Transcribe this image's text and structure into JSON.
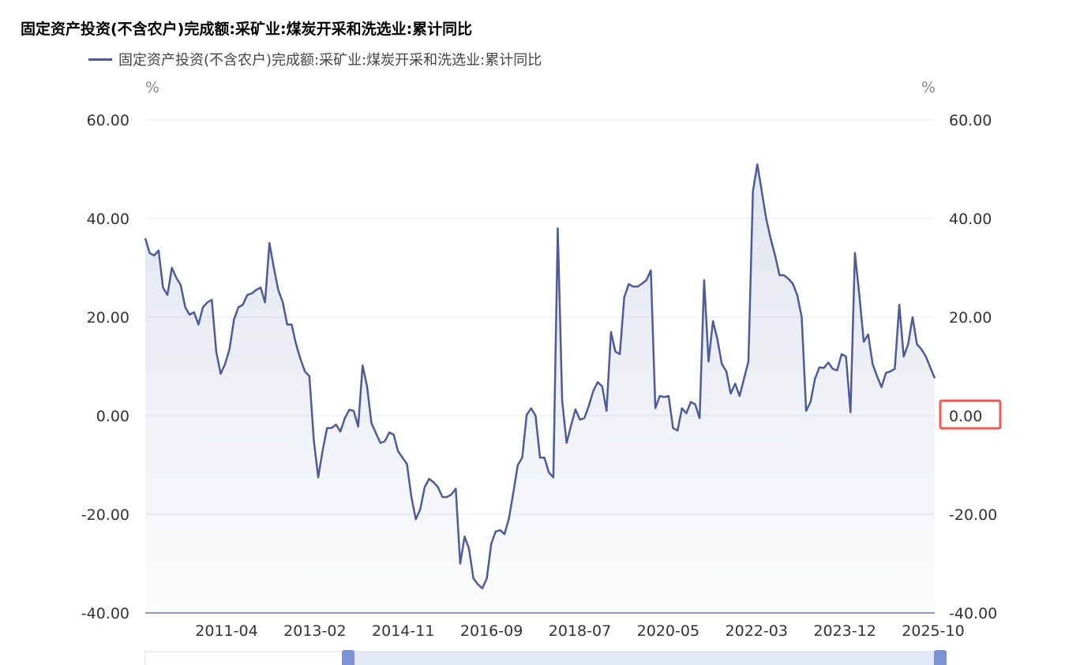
{
  "title": "固定资产投资(不含农户)完成额:采矿业:煤炭开采和洗选业:累计同比",
  "legend": {
    "label": "固定资产投资(不含农户)完成额:采矿业:煤炭开采和洗选业:累计同比"
  },
  "colors": {
    "line": "#4e5b9b",
    "highlight": "#ee5a52",
    "slider": "#dfe6f7"
  },
  "chart_data": {
    "type": "area",
    "title": "固定资产投资(不含农户)完成额:采矿业:煤炭开采和洗选业:累计同比",
    "y_unit_left": "%",
    "y_unit_right": "%",
    "ylim": [
      -40,
      60
    ],
    "y_ticks": [
      "60.00",
      "40.00",
      "20.00",
      "0.00",
      "-20.00",
      "-40.00"
    ],
    "x_tick_labels": [
      "2011-04",
      "2013-02",
      "2014-11",
      "2016-09",
      "2018-07",
      "2020-05",
      "2022-03",
      "2023-12",
      "2025-10"
    ],
    "highlighted_tick": "0.00",
    "grid": true,
    "legend_position": "top-left",
    "series": [
      {
        "name": "固定资产投资(不含农户)完成额:采矿业:煤炭开采和洗选业:累计同比",
        "values": [
          36.0,
          33.0,
          32.5,
          33.5,
          26.0,
          24.5,
          30.0,
          28.0,
          26.5,
          22.0,
          20.5,
          21.0,
          18.5,
          22.0,
          23.0,
          23.5,
          13.0,
          8.5,
          10.5,
          13.5,
          19.5,
          22.0,
          22.5,
          24.5,
          24.8,
          25.5,
          26.0,
          23.0,
          35.0,
          30.0,
          25.5,
          23.0,
          18.5,
          18.5,
          14.5,
          11.5,
          9.0,
          8.0,
          -5.0,
          -12.5,
          -7.0,
          -2.5,
          -2.5,
          -1.8,
          -3.2,
          -0.5,
          1.2,
          1.0,
          -2.2,
          10.2,
          6.0,
          -1.5,
          -3.5,
          -5.5,
          -5.2,
          -3.4,
          -3.8,
          -7.2,
          -8.5,
          -9.8,
          -16.5,
          -21.0,
          -19.0,
          -14.5,
          -12.8,
          -13.5,
          -14.5,
          -16.5,
          -16.5,
          -16.0,
          -14.8,
          -30.0,
          -24.5,
          -27.0,
          -33.0,
          -34.2,
          -35.0,
          -33.0,
          -26.0,
          -23.5,
          -23.2,
          -24.0,
          -20.8,
          -15.5,
          -10.0,
          -8.5,
          0.2,
          1.5,
          0.0,
          -8.5,
          -8.5,
          -11.5,
          -12.5,
          38.0,
          3.0,
          -5.5,
          -2.0,
          1.3,
          -0.8,
          -0.5,
          2.0,
          5.0,
          6.8,
          6.0,
          1.0,
          17.0,
          13.0,
          12.5,
          24.0,
          26.7,
          26.2,
          26.2,
          26.8,
          27.5,
          29.5,
          1.5,
          4.0,
          3.8,
          4.0,
          -2.5,
          -3.0,
          1.5,
          0.5,
          2.8,
          2.3,
          -0.5,
          27.5,
          11.0,
          19.2,
          15.5,
          10.5,
          9.0,
          4.5,
          6.5,
          4.0,
          7.5,
          11.0,
          45.5,
          51.0,
          45.5,
          40.0,
          36.0,
          32.5,
          28.5,
          28.5,
          27.8,
          26.8,
          24.5,
          20.0,
          1.0,
          2.8,
          7.5,
          9.8,
          9.7,
          10.8,
          9.5,
          9.2,
          12.5,
          12.0,
          0.7,
          33.0,
          24.5,
          15.0,
          16.5,
          10.5,
          8.0,
          5.8,
          8.7,
          9.0,
          9.5,
          22.5,
          12.0,
          14.5,
          20.0,
          14.5,
          13.5,
          12.0,
          9.8,
          7.6
        ]
      }
    ]
  }
}
